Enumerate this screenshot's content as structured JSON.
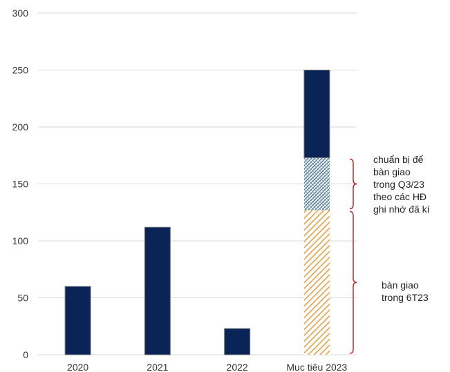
{
  "chart_data": {
    "type": "bar",
    "categories": [
      "2020",
      "2021",
      "2022",
      "Muc tiêu 2023"
    ],
    "y_ticks": [
      0,
      50,
      100,
      150,
      200,
      250,
      300
    ],
    "ylim": [
      0,
      300
    ],
    "grid": true,
    "legend": "none",
    "series": [
      {
        "values": [
          60,
          112,
          23,
          null
        ],
        "color": "#0b2457",
        "pattern": "solid"
      },
      {
        "values": [
          null,
          null,
          null,
          127
        ],
        "color": "#f39a36",
        "pattern": "diagonal-hatch"
      },
      {
        "values": [
          null,
          null,
          null,
          46
        ],
        "color": "#4f7a9e",
        "pattern": "cross-hatch"
      },
      {
        "values": [
          null,
          null,
          null,
          77
        ],
        "color": "#0b2457",
        "pattern": "solid"
      }
    ],
    "annotations": [
      {
        "lines": [
          "chuẩn bị để",
          "bàn giao",
          "trong Q3/23",
          "theo các HĐ",
          "ghi nhớ đã kí"
        ],
        "range": [
          127,
          173
        ]
      },
      {
        "lines": [
          "bàn giao",
          "trong 6T23"
        ],
        "range": [
          0,
          127
        ]
      }
    ],
    "colors": {
      "bar": "#0b2457",
      "orange_hatch": "#f39a36",
      "blue_hatch": "#4f7a9e",
      "bracket": "#d0202a",
      "grid": "#d9d9d9"
    }
  }
}
